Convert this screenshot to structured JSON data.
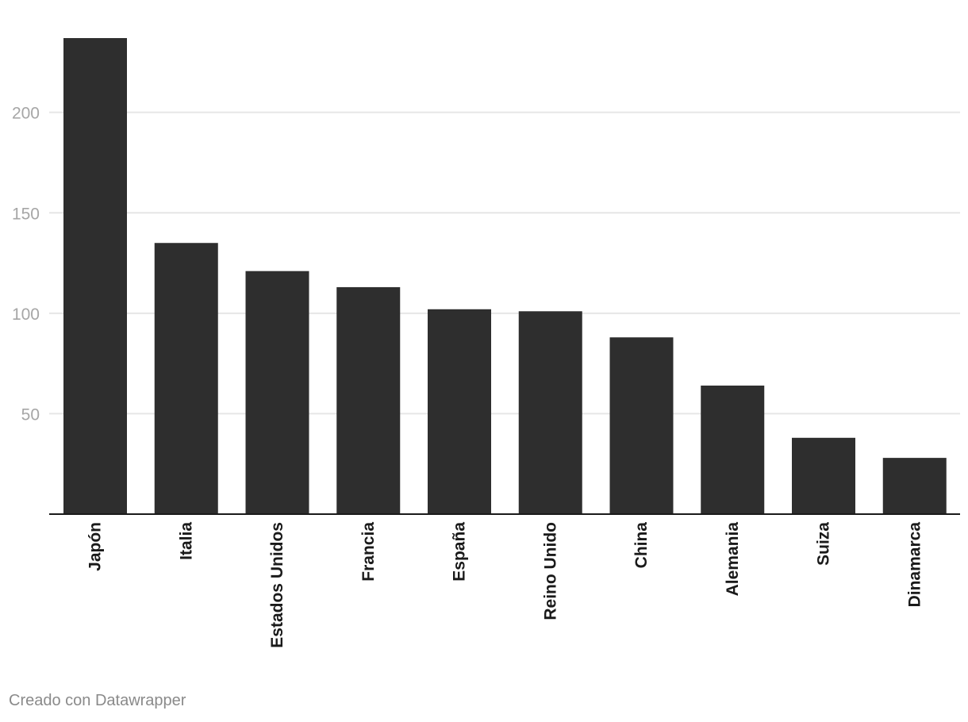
{
  "chart_data": {
    "type": "bar",
    "categories": [
      "Japón",
      "Italia",
      "Estados Unidos",
      "Francia",
      "España",
      "Reino Unido",
      "China",
      "Alemania",
      "Suiza",
      "Dinamarca"
    ],
    "values": [
      237,
      135,
      121,
      113,
      102,
      101,
      88,
      64,
      38,
      28
    ],
    "ylim": [
      0,
      237
    ],
    "yticks": [
      50,
      100,
      150,
      200
    ],
    "grid": true,
    "bar_color": "#2e2e2e",
    "grid_color": "#e6e6e6",
    "axis_color": "#1a1a1a",
    "tick_color": "#a6a6a6",
    "label_color": "#1a1a1a"
  },
  "footer": {
    "credit": "Creado con Datawrapper",
    "credit_color": "#8a8a8a"
  }
}
